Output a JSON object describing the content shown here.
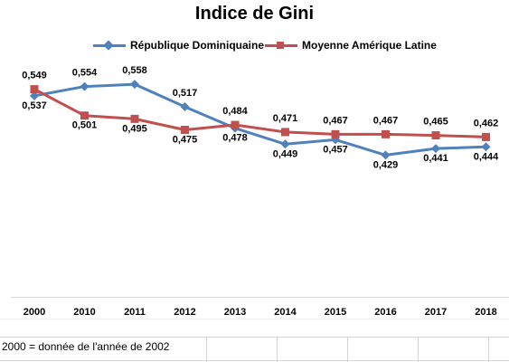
{
  "chart_data": {
    "type": "line",
    "title": "Indice de Gini",
    "xlabel": "",
    "ylabel": "",
    "categories": [
      "2000",
      "2010",
      "2011",
      "2012",
      "2013",
      "2014",
      "2015",
      "2016",
      "2017",
      "2018"
    ],
    "series": [
      {
        "name": "République Dominiquaine",
        "color": "#4f81bd",
        "marker": "diamond",
        "values": [
          0.537,
          0.554,
          0.558,
          0.517,
          0.478,
          0.449,
          0.457,
          0.429,
          0.441,
          0.444
        ],
        "labels": [
          "0,537",
          "0,554",
          "0,558",
          "0,517",
          "0,478",
          "0,449",
          "0,457",
          "0,429",
          "0,441",
          "0,444"
        ]
      },
      {
        "name": "Moyenne Amérique Latine",
        "color": "#c0504d",
        "marker": "square",
        "values": [
          0.549,
          0.501,
          0.495,
          0.475,
          0.484,
          0.471,
          0.467,
          0.467,
          0.465,
          0.462
        ],
        "labels": [
          "0,549",
          "0,501",
          "0,495",
          "0,475",
          "0,484",
          "0,471",
          "0,467",
          "0,467",
          "0,465",
          "0,462"
        ]
      }
    ],
    "ylim": [
      0.25,
      0.6
    ],
    "grid": false,
    "legend_position": "top"
  },
  "footnote": "2000 = donnée de l'année de 2002"
}
